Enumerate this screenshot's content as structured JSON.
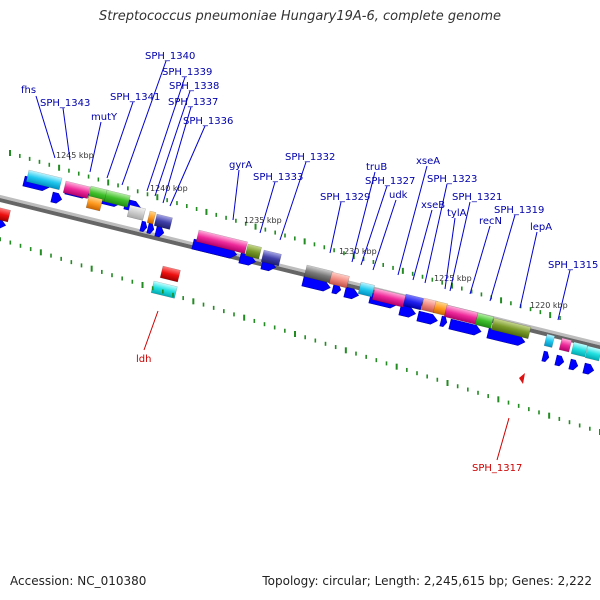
{
  "title": "Streptococcus pneumoniae Hungary19A-6, complete genome",
  "footer": {
    "accession": "Accession: NC_010380",
    "summary": "Topology: circular; Length: 2,245,615 bp; Genes: 2,222"
  },
  "colors": {
    "backbone": "#7a7a7a",
    "cds": "#0000ff",
    "tick": "#228b22",
    "label_forward": "#0000aa",
    "label_reverse": "#cc0000"
  },
  "ticks": [
    "1245 kbp",
    "1240 kbp",
    "1235 kbp",
    "1230 kbp",
    "1225 kbp",
    "1220 kbp"
  ],
  "genes_upper": [
    "fhs",
    "SPH_1343",
    "mutY",
    "SPH_1341",
    "SPH_1340",
    "SPH_1339",
    "SPH_1338",
    "SPH_1337",
    "SPH_1336",
    "gyrA",
    "SPH_1333",
    "SPH_1332",
    "SPH_1329",
    "truB",
    "SPH_1327",
    "udk",
    "xseA",
    "xseB",
    "SPH_1323",
    "tylA",
    "SPH_1321",
    "recN",
    "SPH_1319",
    "lepA",
    "SPH_1315"
  ],
  "genes_lower": [
    "ldh",
    "SPH_1317"
  ]
}
